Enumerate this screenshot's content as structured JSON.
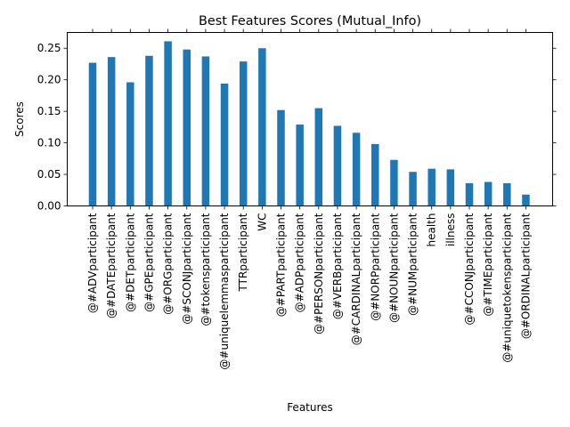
{
  "chart_data": {
    "type": "bar",
    "title": "Best Features Scores (Mutual_Info)",
    "xlabel": "Features",
    "ylabel": "Scores",
    "ylim": [
      0,
      0.275
    ],
    "yticks": [
      "0.00",
      "0.05",
      "0.10",
      "0.15",
      "0.20",
      "0.25"
    ],
    "bar_color": "#1f77b4",
    "grid": false,
    "categories": [
      "@#ADVparticipant",
      "@#DATEparticipant",
      "@#DETparticipant",
      "@#GPEparticipant",
      "@#ORGparticipant",
      "@#SCONJparticipant",
      "@#tokensparticipant",
      "@#uniquelemmasparticipant",
      "TTRparticipant",
      "WC",
      "@#PARTparticipant",
      "@#ADPparticipant",
      "@#PERSONparticipant",
      "@#VERBparticipant",
      "@#CARDINALparticipant",
      "@#NORPparticipant",
      "@#NOUNparticipant",
      "@#NUMparticipant",
      "health",
      "illness",
      "@#CCONJparticipant",
      "@#TIMEparticipant",
      "@#uniquetokensparticipant",
      "@#ORDINALparticipant"
    ],
    "values": [
      0.227,
      0.236,
      0.196,
      0.238,
      0.261,
      0.248,
      0.237,
      0.194,
      0.229,
      0.25,
      0.152,
      0.129,
      0.155,
      0.127,
      0.116,
      0.098,
      0.073,
      0.054,
      0.059,
      0.058,
      0.036,
      0.038,
      0.036,
      0.018
    ]
  }
}
